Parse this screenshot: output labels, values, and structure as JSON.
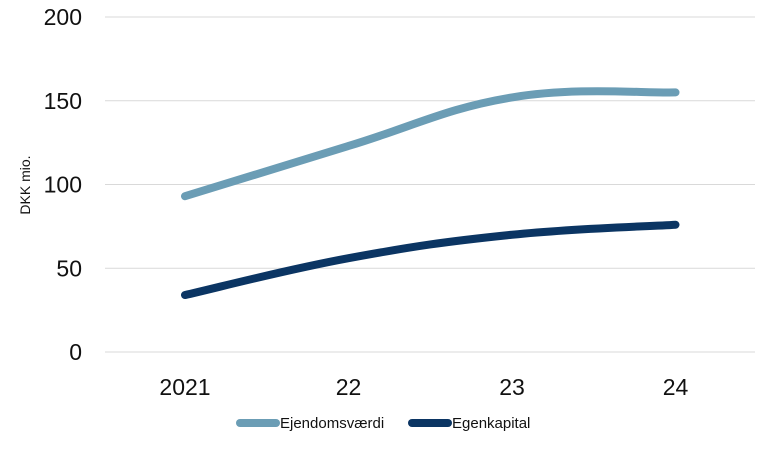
{
  "chart_data": {
    "type": "line",
    "categories": [
      "2021",
      "22",
      "23",
      "24"
    ],
    "ylabel": "DKK mio.",
    "xlabel": "",
    "ylim": [
      0,
      200
    ],
    "yticks": [
      0,
      50,
      100,
      150,
      200
    ],
    "grid": true,
    "smooth": true,
    "legend_position": "bottom",
    "series": [
      {
        "name": "Ejendomsværdi",
        "values": [
          93,
          123,
          152,
          155
        ],
        "color": "#6b9db5"
      },
      {
        "name": "Egenkapital",
        "values": [
          34,
          56,
          70,
          76
        ],
        "color": "#0b3563"
      }
    ]
  }
}
